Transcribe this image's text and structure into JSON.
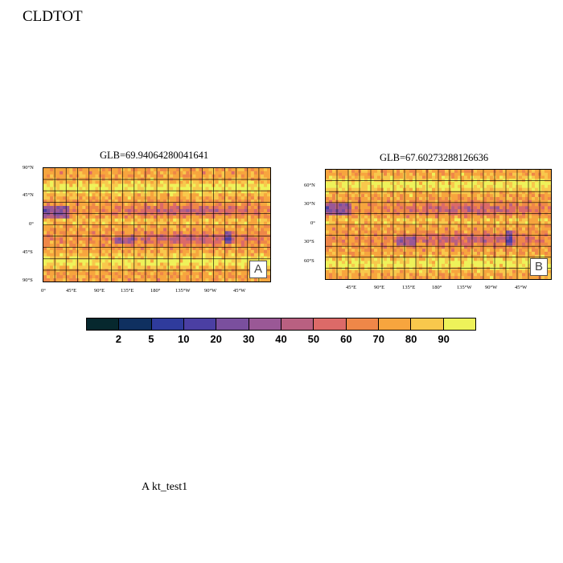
{
  "page_title": "CLDTOT",
  "footer_label": "A  kt_test1",
  "panels": [
    {
      "id": "A",
      "title": "GLB=69.94064280041641",
      "badge": "A",
      "y_ticks": [
        "90°N",
        "45°N",
        "0°",
        "45°S",
        "90°S"
      ],
      "x_ticks": [
        "0°",
        "45°E",
        "90°E",
        "135°E",
        "180°",
        "135°W",
        "90°W",
        "45°W"
      ]
    },
    {
      "id": "B",
      "title": "GLB=67.60273288126636",
      "badge": "B",
      "y_ticks": [
        "60°N",
        "30°N",
        "0°",
        "30°S",
        "60°S"
      ],
      "x_ticks": [
        "45°E",
        "90°E",
        "135°E",
        "180°",
        "135°W",
        "90°W",
        "45°W"
      ]
    }
  ],
  "colorbar": {
    "labels": [
      "2",
      "5",
      "10",
      "20",
      "30",
      "40",
      "50",
      "60",
      "70",
      "80",
      "90"
    ],
    "colors": [
      "#06282e",
      "#0f3060",
      "#2f3b9c",
      "#4b3fa3",
      "#7a4f9e",
      "#9a5896",
      "#b96081",
      "#dc6a68",
      "#ef8748",
      "#f7a53e",
      "#f8c84c",
      "#eef25a"
    ]
  }
}
